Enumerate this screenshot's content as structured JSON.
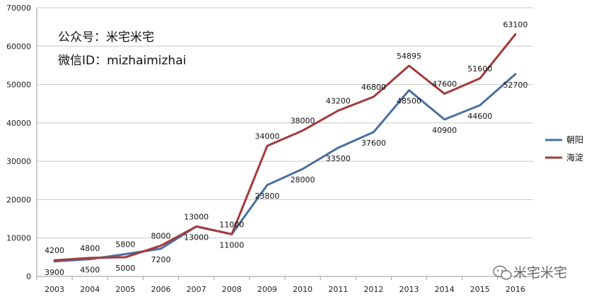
{
  "watermark": {
    "line1": "公众号：米宅米宅",
    "line2": "微信ID：mizhaimizhai",
    "logo_text": "米宅米宅"
  },
  "chart_data": {
    "type": "line",
    "title": "",
    "xlabel": "",
    "ylabel": "",
    "categories": [
      "2003",
      "2004",
      "2005",
      "2006",
      "2007",
      "2008",
      "2009",
      "2010",
      "2011",
      "2012",
      "2013",
      "2014",
      "2015",
      "2016"
    ],
    "ylim": [
      0,
      70000
    ],
    "yticks": [
      0,
      10000,
      20000,
      30000,
      40000,
      50000,
      60000,
      70000
    ],
    "grid": true,
    "legend_position": "right",
    "series": [
      {
        "name": "朝阳",
        "color": "#4a6fa0",
        "values": [
          3900,
          4500,
          5800,
          7200,
          13000,
          11000,
          23800,
          28000,
          33500,
          37600,
          48500,
          40900,
          44600,
          52700
        ]
      },
      {
        "name": "海淀",
        "color": "#a33a3a",
        "values": [
          4200,
          4800,
          5000,
          8000,
          13000,
          11000,
          34000,
          38000,
          43200,
          46800,
          54895,
          47600,
          51600,
          63100
        ]
      }
    ]
  }
}
